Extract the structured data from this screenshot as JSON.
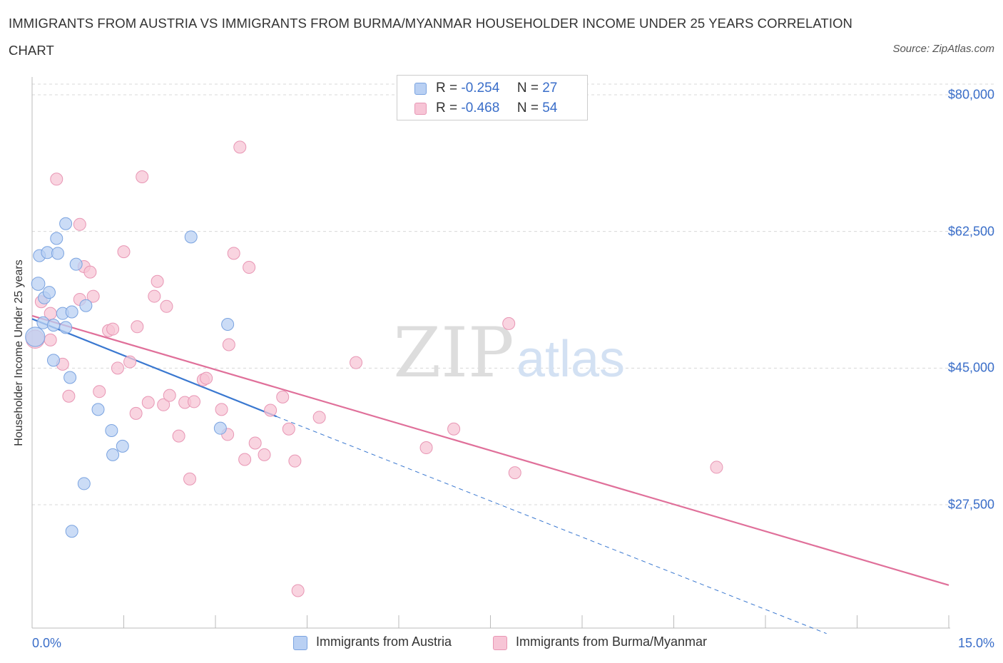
{
  "title": "IMMIGRANTS FROM AUSTRIA VS IMMIGRANTS FROM BURMA/MYANMAR HOUSEHOLDER INCOME UNDER 25 YEARS CORRELATION CHART",
  "source": "Source: ZipAtlas.com",
  "watermark": {
    "zip": "ZIP",
    "atlas": "atlas"
  },
  "legend": {
    "r_label": "R =",
    "n_label": "N =",
    "series": [
      {
        "r": "-0.254",
        "n": "27"
      },
      {
        "r": "-0.468",
        "n": "54"
      }
    ]
  },
  "colors": {
    "austria_fill": "#b9d0f3",
    "austria_stroke": "#7aa3e0",
    "austria_line": "#3a78d0",
    "burma_fill": "#f7c5d6",
    "burma_stroke": "#e896b4",
    "burma_line": "#e0709a",
    "tick_text": "#3a6ec9",
    "grid": "#d8d8d8"
  },
  "chart_data": {
    "type": "scatter",
    "title": "IMMIGRANTS FROM AUSTRIA VS IMMIGRANTS FROM BURMA/MYANMAR HOUSEHOLDER INCOME UNDER 25 YEARS CORRELATION CHART",
    "xlabel": "",
    "ylabel": "Householder Income Under 25 years",
    "xlim": [
      0,
      15
    ],
    "ylim": [
      11000,
      81000
    ],
    "x_tick_labels": [
      "0.0%",
      "15.0%"
    ],
    "y_ticks": [
      {
        "value": 80000,
        "label": "$80,000"
      },
      {
        "value": 62500,
        "label": "$62,500"
      },
      {
        "value": 45000,
        "label": "$45,000"
      },
      {
        "value": 27500,
        "label": "$27,500"
      }
    ],
    "series": [
      {
        "name": "Immigrants from Austria",
        "r": -0.254,
        "n": 27,
        "trend": {
          "x0": 0.0,
          "y0": 51300,
          "x1": 4.0,
          "y1": 38800,
          "dash_to_x": 13.0,
          "dash_to_y": 11000
        },
        "points": [
          {
            "x": 0.05,
            "y": 49000,
            "s": 1.6
          },
          {
            "x": 0.1,
            "y": 55800,
            "s": 1.1
          },
          {
            "x": 0.12,
            "y": 59400,
            "s": 1.0
          },
          {
            "x": 0.18,
            "y": 50800,
            "s": 1.0
          },
          {
            "x": 0.2,
            "y": 54000,
            "s": 1.0
          },
          {
            "x": 0.25,
            "y": 59800,
            "s": 1.0
          },
          {
            "x": 0.28,
            "y": 54700,
            "s": 1.0
          },
          {
            "x": 0.35,
            "y": 50500,
            "s": 1.0
          },
          {
            "x": 0.35,
            "y": 46000,
            "s": 1.0
          },
          {
            "x": 0.4,
            "y": 61600,
            "s": 1.0
          },
          {
            "x": 0.42,
            "y": 59700,
            "s": 1.0
          },
          {
            "x": 0.5,
            "y": 52000,
            "s": 1.0
          },
          {
            "x": 0.55,
            "y": 63500,
            "s": 1.0
          },
          {
            "x": 0.62,
            "y": 43800,
            "s": 1.0
          },
          {
            "x": 0.65,
            "y": 52200,
            "s": 1.0
          },
          {
            "x": 0.72,
            "y": 58300,
            "s": 1.0
          },
          {
            "x": 0.88,
            "y": 53000,
            "s": 1.0
          },
          {
            "x": 1.08,
            "y": 39700,
            "s": 1.0
          },
          {
            "x": 1.3,
            "y": 37000,
            "s": 1.0
          },
          {
            "x": 1.32,
            "y": 33900,
            "s": 1.0
          },
          {
            "x": 1.48,
            "y": 35000,
            "s": 1.0
          },
          {
            "x": 0.85,
            "y": 30200,
            "s": 1.0
          },
          {
            "x": 0.65,
            "y": 24100,
            "s": 1.0
          },
          {
            "x": 2.6,
            "y": 61800,
            "s": 1.0
          },
          {
            "x": 3.2,
            "y": 50600,
            "s": 1.0
          },
          {
            "x": 3.08,
            "y": 37300,
            "s": 1.0
          },
          {
            "x": 0.55,
            "y": 50200,
            "s": 1.0
          }
        ]
      },
      {
        "name": "Immigrants from Burma/Myanmar",
        "r": -0.468,
        "n": 54,
        "trend": {
          "x0": 0.0,
          "y0": 51700,
          "x1": 15.0,
          "y1": 17200
        },
        "points": [
          {
            "x": 0.05,
            "y": 48700,
            "s": 1.5
          },
          {
            "x": 0.15,
            "y": 53500,
            "s": 1.0
          },
          {
            "x": 0.3,
            "y": 48600,
            "s": 1.0
          },
          {
            "x": 0.4,
            "y": 69200,
            "s": 1.0
          },
          {
            "x": 0.5,
            "y": 45500,
            "s": 1.0
          },
          {
            "x": 0.6,
            "y": 41400,
            "s": 1.0
          },
          {
            "x": 0.78,
            "y": 63400,
            "s": 1.0
          },
          {
            "x": 0.85,
            "y": 58000,
            "s": 1.0
          },
          {
            "x": 0.95,
            "y": 57300,
            "s": 1.0
          },
          {
            "x": 1.0,
            "y": 54200,
            "s": 1.0
          },
          {
            "x": 0.78,
            "y": 53800,
            "s": 1.0
          },
          {
            "x": 1.1,
            "y": 42000,
            "s": 1.0
          },
          {
            "x": 1.25,
            "y": 49800,
            "s": 1.0
          },
          {
            "x": 1.32,
            "y": 50000,
            "s": 1.0
          },
          {
            "x": 1.4,
            "y": 45000,
            "s": 1.0
          },
          {
            "x": 1.5,
            "y": 59900,
            "s": 1.0
          },
          {
            "x": 1.6,
            "y": 45800,
            "s": 1.0
          },
          {
            "x": 1.7,
            "y": 39200,
            "s": 1.0
          },
          {
            "x": 1.72,
            "y": 50300,
            "s": 1.0
          },
          {
            "x": 1.8,
            "y": 69500,
            "s": 1.0
          },
          {
            "x": 1.9,
            "y": 40600,
            "s": 1.0
          },
          {
            "x": 2.0,
            "y": 54200,
            "s": 1.0
          },
          {
            "x": 2.05,
            "y": 56100,
            "s": 1.0
          },
          {
            "x": 2.15,
            "y": 40300,
            "s": 1.0
          },
          {
            "x": 2.2,
            "y": 52900,
            "s": 1.0
          },
          {
            "x": 2.25,
            "y": 41500,
            "s": 1.0
          },
          {
            "x": 2.4,
            "y": 36300,
            "s": 1.0
          },
          {
            "x": 2.5,
            "y": 40600,
            "s": 1.0
          },
          {
            "x": 2.58,
            "y": 30800,
            "s": 1.0
          },
          {
            "x": 2.65,
            "y": 40700,
            "s": 1.0
          },
          {
            "x": 2.8,
            "y": 43500,
            "s": 1.0
          },
          {
            "x": 2.85,
            "y": 43700,
            "s": 1.0
          },
          {
            "x": 3.1,
            "y": 39700,
            "s": 1.0
          },
          {
            "x": 3.2,
            "y": 36500,
            "s": 1.0
          },
          {
            "x": 3.22,
            "y": 48000,
            "s": 1.0
          },
          {
            "x": 3.3,
            "y": 59700,
            "s": 1.0
          },
          {
            "x": 3.4,
            "y": 73300,
            "s": 1.0
          },
          {
            "x": 3.48,
            "y": 33300,
            "s": 1.0
          },
          {
            "x": 3.55,
            "y": 57900,
            "s": 1.0
          },
          {
            "x": 3.65,
            "y": 35400,
            "s": 1.0
          },
          {
            "x": 3.8,
            "y": 33900,
            "s": 1.0
          },
          {
            "x": 3.9,
            "y": 39600,
            "s": 1.0
          },
          {
            "x": 4.1,
            "y": 41300,
            "s": 1.0
          },
          {
            "x": 4.2,
            "y": 37200,
            "s": 1.0
          },
          {
            "x": 4.3,
            "y": 33100,
            "s": 1.0
          },
          {
            "x": 4.35,
            "y": 16500,
            "s": 1.0
          },
          {
            "x": 4.7,
            "y": 38700,
            "s": 1.0
          },
          {
            "x": 5.3,
            "y": 45700,
            "s": 1.0
          },
          {
            "x": 6.45,
            "y": 34800,
            "s": 1.0
          },
          {
            "x": 6.9,
            "y": 37200,
            "s": 1.0
          },
          {
            "x": 7.8,
            "y": 50700,
            "s": 1.0
          },
          {
            "x": 7.9,
            "y": 31600,
            "s": 1.0
          },
          {
            "x": 11.2,
            "y": 32300,
            "s": 1.0
          },
          {
            "x": 0.3,
            "y": 52000,
            "s": 1.0
          }
        ]
      }
    ]
  }
}
